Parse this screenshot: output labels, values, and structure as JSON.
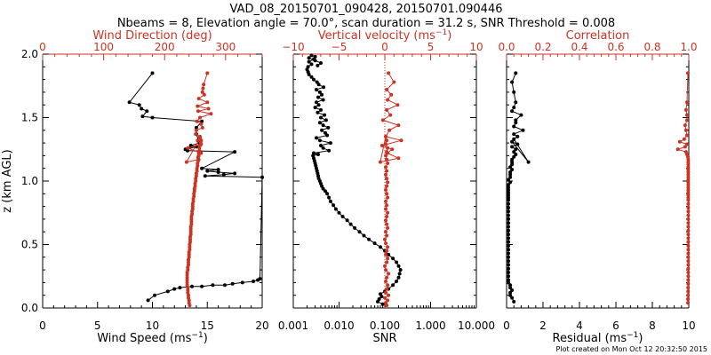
{
  "header": {
    "title": "VAD_08_20150701_090428, 20150701.090446",
    "subtitle": "Nbeams = 8, Elevation angle = 70.0°, scan duration = 31.2 s, SNR Threshold = 0.008"
  },
  "footer": {
    "created": "Plot created on Mon Oct 12 20:32:50 2015"
  },
  "colors": {
    "primary": "#000000",
    "secondary": "#cc3322"
  },
  "chart_data": [
    {
      "type": "line",
      "y_label": "z (km AGL)",
      "ylim": [
        0,
        2.0
      ],
      "y_ticks": [
        "0.0",
        "0.5",
        "1.0",
        "1.5",
        "2.0"
      ],
      "bottom_axis": {
        "label": "Wind Speed (ms",
        "unit_exp": "−1",
        "label_close": ")",
        "xlim": [
          0,
          20
        ],
        "ticks": [
          "0",
          "5",
          "10",
          "15",
          "20"
        ]
      },
      "top_axis": {
        "label": "Wind Direction (deg)",
        "xlim": [
          0,
          360
        ],
        "ticks": [
          "0",
          "100",
          "200",
          "300"
        ]
      },
      "series": [
        {
          "axis": "bottom",
          "color": "#000000",
          "x": [
            9.6,
            10.2,
            11.4,
            12.0,
            12.5,
            13.6,
            14.5,
            15.5,
            16.6,
            17.3,
            18.2,
            19.2,
            19.6,
            19.8,
            20.0,
            14.8,
            16.5,
            17.5,
            16.0,
            15.0,
            16.0,
            14.5,
            17.5,
            13.2,
            13.0,
            14.0,
            13.5,
            14.3,
            14.0,
            14.0,
            14.5,
            10.0,
            9.1,
            9.5,
            9.0,
            8.8,
            7.9,
            10.0
          ],
          "y": [
            0.06,
            0.1,
            0.13,
            0.15,
            0.16,
            0.17,
            0.17,
            0.18,
            0.18,
            0.19,
            0.2,
            0.21,
            0.22,
            0.23,
            1.03,
            1.04,
            1.05,
            1.06,
            1.07,
            1.08,
            1.09,
            1.1,
            1.23,
            1.24,
            1.25,
            1.27,
            1.28,
            1.3,
            1.37,
            1.42,
            1.47,
            1.5,
            1.51,
            1.55,
            1.57,
            1.6,
            1.62,
            1.85
          ]
        },
        {
          "axis": "top",
          "color": "#cc3322",
          "x": [
            241,
            240,
            240,
            239,
            239,
            238,
            238,
            238,
            237,
            237,
            237,
            237,
            237,
            237,
            238,
            238,
            239,
            239,
            239,
            240,
            240,
            240,
            241,
            241,
            241,
            242,
            242,
            242,
            243,
            243,
            243,
            243,
            244,
            244,
            244,
            244,
            245,
            245,
            246,
            246,
            246,
            247,
            247,
            248,
            248,
            249,
            249,
            250,
            250,
            251,
            251,
            252,
            252,
            253,
            253,
            254,
            254,
            255,
            255,
            256,
            256,
            257,
            257,
            258,
            259,
            260,
            258,
            236,
            256,
            255,
            260,
            238,
            260,
            254,
            258,
            251,
            252,
            262,
            260,
            253,
            258,
            276,
            255,
            272,
            254,
            270,
            256,
            265,
            262,
            263,
            264,
            270
          ],
          "y": [
            0.02,
            0.04,
            0.06,
            0.08,
            0.1,
            0.12,
            0.14,
            0.16,
            0.18,
            0.2,
            0.22,
            0.24,
            0.26,
            0.28,
            0.3,
            0.32,
            0.34,
            0.36,
            0.38,
            0.4,
            0.42,
            0.44,
            0.46,
            0.48,
            0.5,
            0.52,
            0.54,
            0.56,
            0.58,
            0.6,
            0.62,
            0.64,
            0.66,
            0.68,
            0.7,
            0.72,
            0.74,
            0.76,
            0.78,
            0.8,
            0.82,
            0.84,
            0.86,
            0.88,
            0.9,
            0.92,
            0.94,
            0.96,
            0.98,
            1.0,
            1.02,
            1.04,
            1.06,
            1.08,
            1.1,
            1.12,
            1.14,
            1.16,
            1.18,
            1.2,
            1.22,
            1.24,
            1.26,
            1.28,
            1.3,
            1.32,
            1.34,
            1.15,
            1.17,
            1.19,
            1.22,
            1.26,
            1.29,
            1.32,
            1.35,
            1.37,
            1.4,
            1.42,
            1.45,
            1.47,
            1.5,
            1.53,
            1.55,
            1.57,
            1.59,
            1.62,
            1.65,
            1.68,
            1.7,
            1.73,
            1.76,
            1.85
          ]
        }
      ]
    },
    {
      "type": "line",
      "ylim": [
        0,
        2.0
      ],
      "bottom_axis": {
        "label": "SNR",
        "scale": "log",
        "xlim": [
          0.001,
          10
        ],
        "ticks": [
          "0.001",
          "0.010",
          "0.100",
          "1.000",
          "10.000"
        ]
      },
      "top_axis": {
        "label": "Vertical velocity (ms",
        "unit_exp": "−1",
        "label_close": ")",
        "xlim": [
          -10,
          10
        ],
        "ticks": [
          "−10",
          "−5",
          "0",
          "5",
          "10"
        ]
      },
      "series": [
        {
          "axis": "bottom",
          "color": "#000000",
          "x": [
            0.09,
            0.07,
            0.075,
            0.085,
            0.08,
            0.1,
            0.12,
            0.15,
            0.18,
            0.2,
            0.21,
            0.22,
            0.2,
            0.18,
            0.15,
            0.12,
            0.1,
            0.08,
            0.06,
            0.045,
            0.035,
            0.028,
            0.022,
            0.018,
            0.015,
            0.012,
            0.01,
            0.0085,
            0.0075,
            0.0065,
            0.006,
            0.0055,
            0.005,
            0.0045,
            0.0042,
            0.004,
            0.0038,
            0.0036,
            0.0035,
            0.0034,
            0.0033,
            0.0032,
            0.0031,
            0.003,
            0.0029,
            0.0028,
            0.0027,
            0.0035,
            0.0028,
            0.006,
            0.0045,
            0.004,
            0.0065,
            0.0038,
            0.0032,
            0.0055,
            0.005,
            0.0042,
            0.0058,
            0.0045,
            0.0038,
            0.0052,
            0.004,
            0.0048,
            0.0034,
            0.004,
            0.003,
            0.0036,
            0.0032,
            0.0045,
            0.0035,
            0.0042,
            0.0038,
            0.0032,
            0.0046,
            0.0036,
            0.0033,
            0.0028,
            0.0025,
            0.0022,
            0.0021,
            0.002,
            0.0021,
            0.0025,
            0.0022,
            0.0028,
            0.003,
            0.0025,
            0.0022,
            0.003,
            0.004,
            0.0034
          ],
          "y": [
            0.03,
            0.05,
            0.07,
            0.09,
            0.11,
            0.13,
            0.15,
            0.18,
            0.21,
            0.24,
            0.27,
            0.3,
            0.33,
            0.36,
            0.39,
            0.42,
            0.45,
            0.48,
            0.51,
            0.54,
            0.57,
            0.6,
            0.63,
            0.66,
            0.69,
            0.72,
            0.75,
            0.78,
            0.81,
            0.84,
            0.87,
            0.9,
            0.92,
            0.94,
            0.96,
            0.98,
            1.0,
            1.02,
            1.04,
            1.06,
            1.08,
            1.1,
            1.12,
            1.14,
            1.16,
            1.18,
            1.2,
            1.21,
            1.22,
            1.24,
            1.26,
            1.28,
            1.3,
            1.32,
            1.34,
            1.36,
            1.38,
            1.4,
            1.42,
            1.44,
            1.46,
            1.48,
            1.5,
            1.52,
            1.54,
            1.56,
            1.58,
            1.6,
            1.62,
            1.64,
            1.66,
            1.68,
            1.7,
            1.72,
            1.74,
            1.76,
            1.78,
            1.8,
            1.82,
            1.84,
            1.86,
            1.88,
            1.9,
            1.92,
            1.94,
            1.96,
            1.98,
            1.99,
            1.97,
            1.95,
            1.93,
            1.91
          ]
        },
        {
          "axis": "top",
          "color": "#cc3322",
          "x": [
            0.2,
            0.1,
            0.3,
            0.0,
            0.4,
            0.1,
            0.2,
            0.3,
            0.1,
            0.2,
            0.4,
            0.1,
            0.0,
            0.2,
            0.3,
            0.1,
            0.2,
            0.3,
            0.1,
            0.0,
            0.2,
            0.1,
            0.3,
            0.2,
            0.1,
            0.2,
            0.3,
            0.1,
            0.2,
            0.1,
            0.3,
            0.2,
            0.1,
            0.2,
            0.3,
            0.2,
            0.1,
            0.2,
            0.1,
            0.3,
            0.2,
            0.1,
            0.2,
            0.3,
            0.1,
            0.2,
            0.1,
            -0.5,
            1.5,
            0.3,
            0.8,
            -0.3,
            1.8,
            0.1,
            0.5,
            1.5,
            -0.2,
            0.6,
            0.2,
            1.4,
            0.3,
            0.7,
            0.2,
            1.0,
            0.4
          ],
          "y": [
            0.02,
            0.04,
            0.06,
            0.08,
            0.1,
            0.12,
            0.15,
            0.18,
            0.21,
            0.24,
            0.27,
            0.3,
            0.33,
            0.36,
            0.39,
            0.42,
            0.45,
            0.48,
            0.51,
            0.54,
            0.57,
            0.6,
            0.63,
            0.66,
            0.69,
            0.72,
            0.75,
            0.78,
            0.81,
            0.84,
            0.87,
            0.9,
            0.93,
            0.96,
            0.99,
            1.02,
            1.05,
            1.08,
            1.11,
            1.14,
            1.17,
            1.2,
            1.23,
            1.26,
            1.29,
            1.32,
            1.35,
            1.15,
            1.18,
            1.22,
            1.25,
            1.28,
            1.32,
            1.35,
            1.4,
            1.44,
            1.48,
            1.52,
            1.56,
            1.6,
            1.64,
            1.68,
            1.72,
            1.78,
            1.85
          ]
        }
      ]
    },
    {
      "type": "line",
      "ylim": [
        0,
        2.0
      ],
      "bottom_axis": {
        "label": "Residual (ms",
        "unit_exp": "−1",
        "label_close": ")",
        "xlim": [
          0,
          10
        ],
        "ticks": [
          "0",
          "2",
          "4",
          "6",
          "8",
          "10"
        ]
      },
      "top_axis": {
        "label": "Correlation",
        "xlim": [
          0,
          1.0
        ],
        "ticks": [
          "0.0",
          "0.2",
          "0.4",
          "0.6",
          "0.8",
          "1.0"
        ]
      },
      "series": [
        {
          "axis": "bottom",
          "color": "#000000",
          "x": [
            0.4,
            0.3,
            0.2,
            0.2,
            0.3,
            0.2,
            0.2,
            0.1,
            0.1,
            0.1,
            0.1,
            0.1,
            0.1,
            0.1,
            0.1,
            0.1,
            0.1,
            0.1,
            0.1,
            0.1,
            0.1,
            0.1,
            0.1,
            0.1,
            0.1,
            0.1,
            0.1,
            0.1,
            0.1,
            0.1,
            0.1,
            0.1,
            0.1,
            0.1,
            0.1,
            0.1,
            0.2,
            0.1,
            0.2,
            0.2,
            0.2,
            0.3,
            0.2,
            0.3,
            0.3,
            0.3,
            0.4,
            0.5,
            0.4,
            0.5,
            0.3,
            0.6,
            0.3,
            1.2,
            0.4,
            0.6,
            0.4,
            0.9,
            0.4,
            0.5,
            0.5,
            0.8,
            0.3,
            0.4,
            0.5,
            0.4,
            0.3,
            0.5
          ],
          "y": [
            0.05,
            0.08,
            0.1,
            0.12,
            0.14,
            0.16,
            0.18,
            0.2,
            0.22,
            0.25,
            0.28,
            0.31,
            0.34,
            0.37,
            0.4,
            0.43,
            0.46,
            0.49,
            0.52,
            0.55,
            0.58,
            0.61,
            0.64,
            0.67,
            0.7,
            0.73,
            0.76,
            0.79,
            0.82,
            0.85,
            0.87,
            0.89,
            0.91,
            0.93,
            0.95,
            0.97,
            0.99,
            1.01,
            1.03,
            1.05,
            1.07,
            1.09,
            1.11,
            1.13,
            1.15,
            1.17,
            1.19,
            1.21,
            1.23,
            1.25,
            1.27,
            1.29,
            1.31,
            1.15,
            1.33,
            1.35,
            1.37,
            1.4,
            1.43,
            1.46,
            1.48,
            1.52,
            1.55,
            1.58,
            1.62,
            1.7,
            1.78,
            1.85
          ]
        },
        {
          "axis": "top",
          "color": "#cc3322",
          "x": [
            0.995,
            0.995,
            0.996,
            0.996,
            0.996,
            0.997,
            0.997,
            0.997,
            0.997,
            0.997,
            0.997,
            0.997,
            0.997,
            0.997,
            0.997,
            0.997,
            0.997,
            0.997,
            0.997,
            0.997,
            0.997,
            0.997,
            0.997,
            0.997,
            0.997,
            0.997,
            0.997,
            0.997,
            0.997,
            0.997,
            0.997,
            0.997,
            0.997,
            0.997,
            0.997,
            0.997,
            0.997,
            0.997,
            0.997,
            0.997,
            0.997,
            0.997,
            0.997,
            0.997,
            0.995,
            0.99,
            0.985,
            0.94,
            0.98,
            0.99,
            0.95,
            0.975,
            0.99,
            0.985,
            0.98,
            0.99,
            0.99,
            0.985,
            0.99,
            0.995
          ],
          "y": [
            0.04,
            0.07,
            0.1,
            0.13,
            0.16,
            0.19,
            0.22,
            0.25,
            0.28,
            0.31,
            0.34,
            0.37,
            0.4,
            0.43,
            0.46,
            0.49,
            0.52,
            0.55,
            0.58,
            0.61,
            0.64,
            0.67,
            0.7,
            0.73,
            0.76,
            0.79,
            0.82,
            0.85,
            0.87,
            0.89,
            0.91,
            0.93,
            0.95,
            0.97,
            0.99,
            1.01,
            1.03,
            1.05,
            1.07,
            1.09,
            1.11,
            1.13,
            1.15,
            1.17,
            1.19,
            1.21,
            1.23,
            1.25,
            1.27,
            1.29,
            1.31,
            1.33,
            1.36,
            1.4,
            1.44,
            1.48,
            1.52,
            1.56,
            1.62,
            1.85
          ]
        }
      ]
    }
  ]
}
